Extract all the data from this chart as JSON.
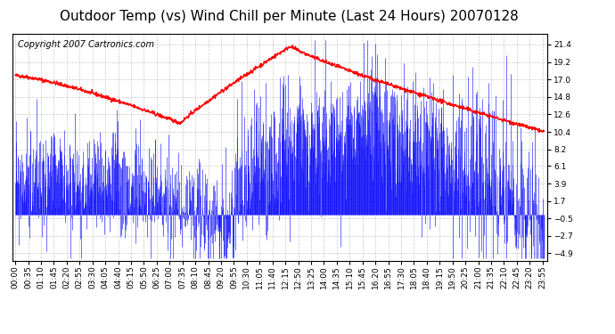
{
  "title": "Outdoor Temp (vs) Wind Chill per Minute (Last 24 Hours) 20070128",
  "copyright_text": "Copyright 2007 Cartronics.com",
  "background_color": "#ffffff",
  "plot_bg_color": "#ffffff",
  "grid_color": "#bbbbbb",
  "y_ticks": [
    21.4,
    19.2,
    17.0,
    14.8,
    12.6,
    10.4,
    8.2,
    6.1,
    3.9,
    1.7,
    -0.5,
    -2.7,
    -4.9
  ],
  "y_min": -5.8,
  "y_max": 22.8,
  "x_tick_labels": [
    "00:00",
    "00:35",
    "01:10",
    "01:45",
    "02:20",
    "02:55",
    "03:30",
    "04:05",
    "04:40",
    "05:15",
    "05:50",
    "06:25",
    "07:00",
    "07:35",
    "08:10",
    "08:45",
    "09:20",
    "09:55",
    "10:30",
    "11:05",
    "11:40",
    "12:15",
    "12:50",
    "13:25",
    "14:00",
    "14:35",
    "15:10",
    "15:45",
    "16:20",
    "16:55",
    "17:30",
    "18:05",
    "18:40",
    "19:15",
    "19:50",
    "20:25",
    "21:00",
    "21:35",
    "22:10",
    "22:45",
    "23:20",
    "23:55"
  ],
  "red_line_color": "#ff0000",
  "blue_bar_color": "#0000ff",
  "title_fontsize": 11,
  "tick_fontsize": 6.5,
  "copyright_fontsize": 7
}
